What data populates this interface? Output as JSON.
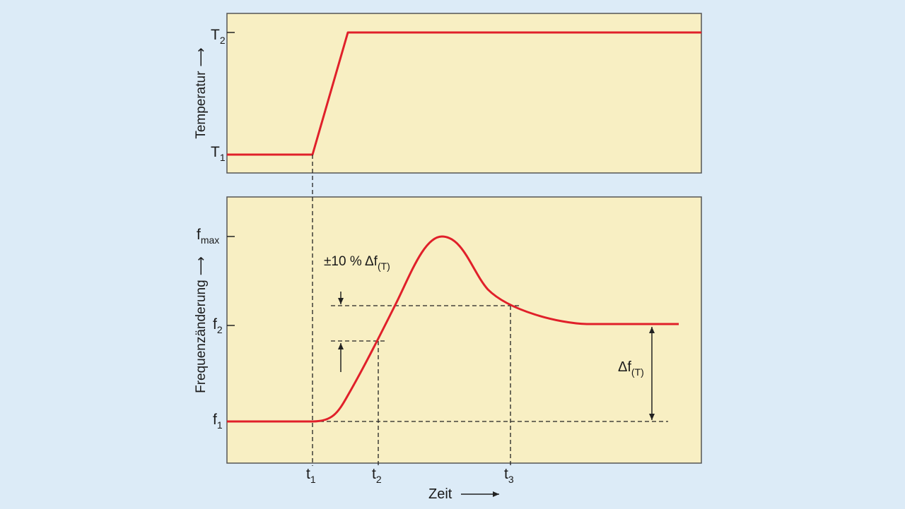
{
  "top_panel": {
    "y_axis_label": "Temperatur",
    "y_ticks": [
      {
        "main": "T",
        "sub": "2"
      },
      {
        "main": "T",
        "sub": "1"
      }
    ]
  },
  "bottom_panel": {
    "y_axis_label": "Frequenzänderung",
    "y_ticks": [
      {
        "main": "f",
        "sub": "max"
      },
      {
        "main": "f",
        "sub": "2"
      },
      {
        "main": "f",
        "sub": "1"
      }
    ],
    "tolerance_label": {
      "main": "±10 % Δf",
      "sub": "(T)"
    },
    "delta_label": {
      "main": "Δf",
      "sub": "(T)"
    }
  },
  "x_axis": {
    "label": "Zeit",
    "ticks": [
      {
        "main": "t",
        "sub": "1"
      },
      {
        "main": "t",
        "sub": "2"
      },
      {
        "main": "t",
        "sub": "3"
      }
    ]
  },
  "colors": {
    "background": "#dcebf7",
    "panel_fill": "#f8efc3",
    "curve": "#e0202a",
    "axis": "#222222"
  }
}
